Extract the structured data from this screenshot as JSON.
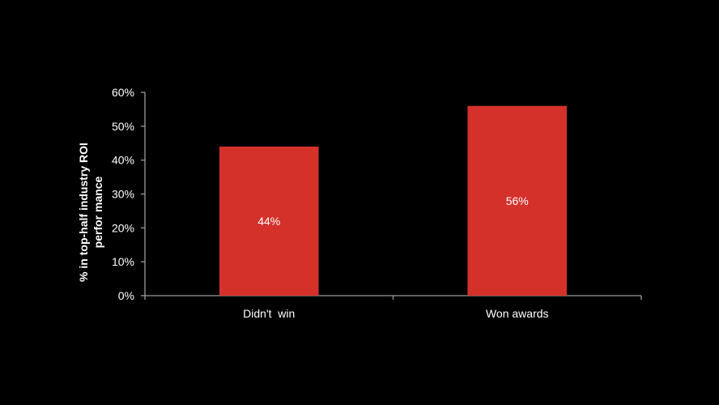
{
  "chart_data": {
    "type": "bar",
    "categories": [
      "Didn't  win",
      "Won awards"
    ],
    "values": [
      44,
      56
    ],
    "value_labels": [
      "44%",
      "56%"
    ],
    "ylabel_lines": [
      "% in top-half  industry  ROI",
      "perfor mance"
    ],
    "ylim": [
      0,
      60
    ],
    "yticks": [
      0,
      10,
      20,
      30,
      40,
      50,
      60
    ],
    "ytick_labels": [
      "0%",
      "10%",
      "20%",
      "30%",
      "40%",
      "50%",
      "60%"
    ],
    "grid": false,
    "legend": "none",
    "colors": {
      "background": "#000000",
      "bar": "#d5312b",
      "axis": "#9a9a9a",
      "text": "#ffffff"
    }
  }
}
